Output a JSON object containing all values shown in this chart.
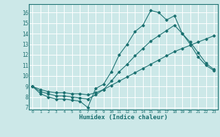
{
  "xlabel": "Humidex (Indice chaleur)",
  "xlim": [
    -0.5,
    23.5
  ],
  "ylim": [
    6.8,
    16.8
  ],
  "xticks": [
    0,
    1,
    2,
    3,
    4,
    5,
    6,
    7,
    8,
    9,
    10,
    11,
    12,
    13,
    14,
    15,
    16,
    17,
    18,
    19,
    20,
    21,
    22,
    23
  ],
  "yticks": [
    7,
    8,
    9,
    10,
    11,
    12,
    13,
    14,
    15,
    16
  ],
  "background_color": "#cce8e8",
  "line_color": "#1a7070",
  "grid_color": "#ffffff",
  "line1_x": [
    0,
    1,
    2,
    3,
    4,
    5,
    6,
    7,
    8,
    9,
    10,
    11,
    12,
    13,
    14,
    15,
    16,
    17,
    18,
    19,
    20,
    21,
    22,
    23
  ],
  "line1_y": [
    9.0,
    8.3,
    8.0,
    7.8,
    7.8,
    7.7,
    7.6,
    7.0,
    8.8,
    9.2,
    10.4,
    12.0,
    13.0,
    14.2,
    14.8,
    16.2,
    16.0,
    15.3,
    15.7,
    14.0,
    13.0,
    11.8,
    11.0,
    10.5
  ],
  "line2_x": [
    0,
    1,
    2,
    3,
    4,
    5,
    6,
    7,
    8,
    9,
    10,
    11,
    12,
    13,
    14,
    15,
    16,
    17,
    18,
    19,
    20,
    21,
    22,
    23
  ],
  "line2_y": [
    9.0,
    8.5,
    8.3,
    8.1,
    8.1,
    8.0,
    7.9,
    7.8,
    8.2,
    8.7,
    9.5,
    10.4,
    11.1,
    11.9,
    12.6,
    13.3,
    13.8,
    14.3,
    14.8,
    14.0,
    13.2,
    12.2,
    11.2,
    10.6
  ],
  "line3_x": [
    0,
    1,
    2,
    3,
    4,
    5,
    6,
    7,
    8,
    9,
    10,
    11,
    12,
    13,
    14,
    15,
    16,
    17,
    18,
    19,
    20,
    21,
    22,
    23
  ],
  "line3_y": [
    9.0,
    8.7,
    8.5,
    8.4,
    8.4,
    8.3,
    8.3,
    8.2,
    8.4,
    8.7,
    9.1,
    9.5,
    9.9,
    10.3,
    10.7,
    11.1,
    11.5,
    11.9,
    12.3,
    12.6,
    12.9,
    13.2,
    13.5,
    13.8
  ]
}
